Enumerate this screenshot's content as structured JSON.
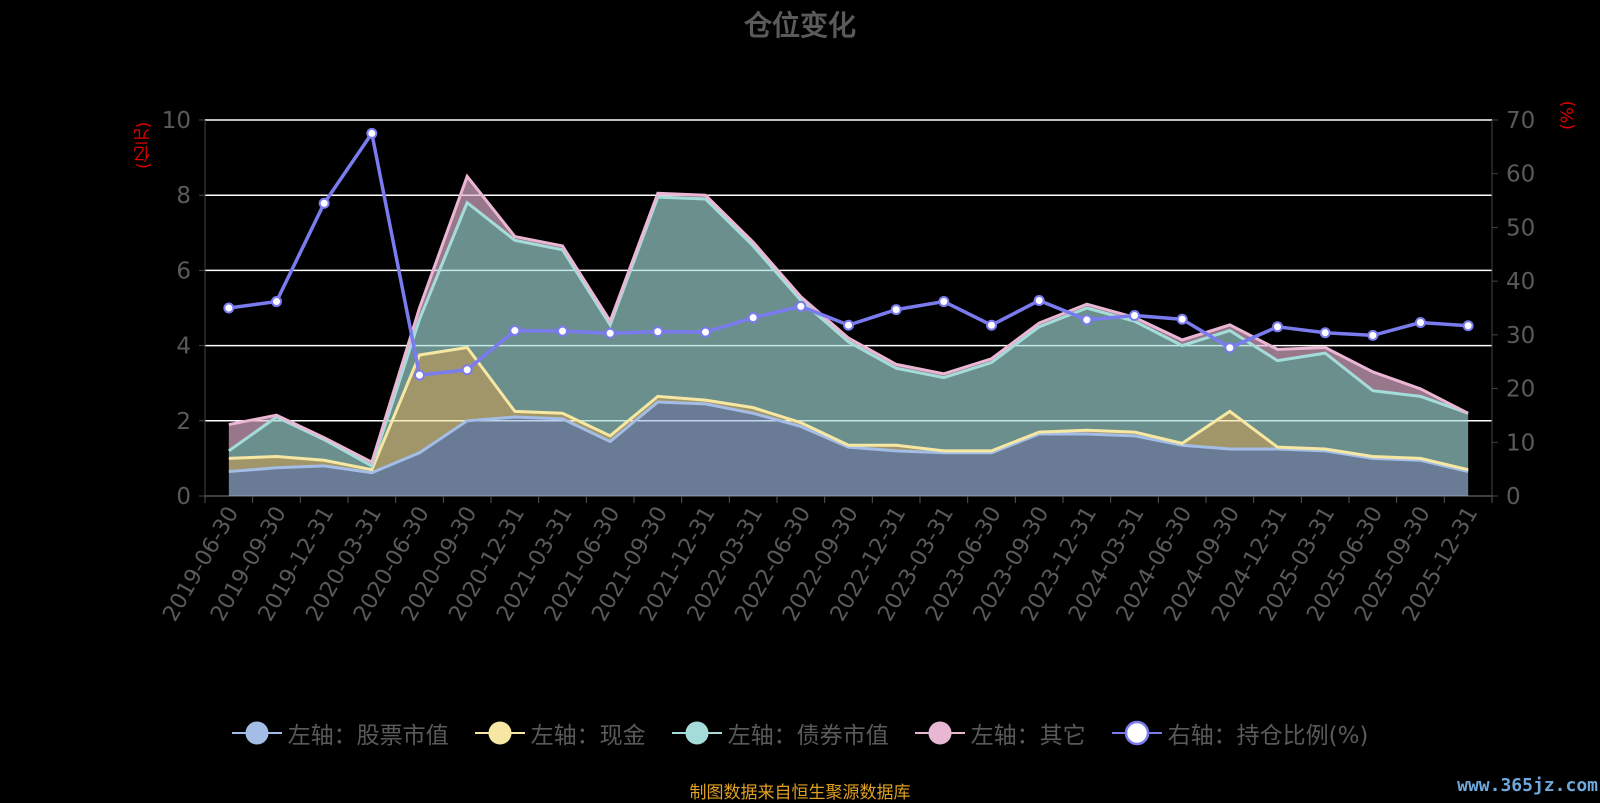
{
  "chart_data": {
    "type": "area",
    "title": "仓位变化",
    "left_unit": "(亿元)",
    "right_unit": "(%)",
    "left_axis": {
      "min": 0,
      "max": 10,
      "ticks": [
        0,
        2,
        4,
        6,
        8,
        10
      ]
    },
    "right_axis": {
      "min": 0,
      "max": 70,
      "ticks": [
        0,
        10,
        20,
        30,
        40,
        50,
        60,
        70
      ]
    },
    "categories": [
      "2019-06-30",
      "2019-09-30",
      "2019-12-31",
      "2020-03-31",
      "2020-06-30",
      "2020-09-30",
      "2020-12-31",
      "2021-03-31",
      "2021-06-30",
      "2021-09-30",
      "2021-12-31",
      "2022-03-31",
      "2022-06-30",
      "2022-09-30",
      "2022-12-31",
      "2023-03-31",
      "2023-06-30",
      "2023-09-30",
      "2023-12-31",
      "2024-03-31",
      "2024-06-30",
      "2024-09-30",
      "2024-12-31",
      "2025-03-31",
      "2025-06-30",
      "2025-09-30",
      "2025-12-31"
    ],
    "stacked_series": [
      {
        "name": "左轴：股票市值",
        "axis": "left",
        "color": "#a3bde6",
        "values": [
          0.65,
          0.75,
          0.8,
          0.62,
          1.15,
          2.0,
          2.1,
          2.05,
          1.45,
          2.5,
          2.45,
          2.2,
          1.85,
          1.3,
          1.2,
          1.15,
          1.15,
          1.65,
          1.65,
          1.6,
          1.35,
          1.25,
          1.25,
          1.2,
          1.0,
          0.95,
          0.65
        ]
      },
      {
        "name": "左轴：现金",
        "axis": "left",
        "color": "#f6e7a3",
        "values": [
          0.35,
          0.3,
          0.15,
          0.08,
          2.6,
          1.95,
          0.15,
          0.15,
          0.15,
          0.15,
          0.1,
          0.15,
          0.1,
          0.05,
          0.15,
          0.05,
          0.05,
          0.05,
          0.1,
          0.1,
          0.05,
          1.0,
          0.05,
          0.05,
          0.05,
          0.05,
          0.05
        ]
      },
      {
        "name": "左轴：债券市值",
        "axis": "left",
        "color": "#a4dcd9",
        "values": [
          0.2,
          1.05,
          0.55,
          0.1,
          0.95,
          3.85,
          4.55,
          4.35,
          2.95,
          5.3,
          5.35,
          4.3,
          3.25,
          2.75,
          2.05,
          1.95,
          2.35,
          2.8,
          3.25,
          2.95,
          2.6,
          2.15,
          2.3,
          2.55,
          1.75,
          1.65,
          1.5
        ]
      },
      {
        "name": "左轴：其它",
        "axis": "left",
        "color": "#e9b7d4",
        "values": [
          0.7,
          0.05,
          0.05,
          0.1,
          0.3,
          0.7,
          0.1,
          0.1,
          0.1,
          0.1,
          0.1,
          0.1,
          0.1,
          0.1,
          0.1,
          0.1,
          0.1,
          0.1,
          0.1,
          0.1,
          0.15,
          0.15,
          0.3,
          0.15,
          0.5,
          0.2,
          0.0
        ]
      }
    ],
    "line_series": {
      "name": "右轴：持仓比例(%)",
      "axis": "right",
      "color": "#7b7bf0",
      "values": [
        35.0,
        36.2,
        54.5,
        67.5,
        22.5,
        23.5,
        30.8,
        30.7,
        30.3,
        30.6,
        30.5,
        33.2,
        35.3,
        31.8,
        34.7,
        36.2,
        31.8,
        36.4,
        32.8,
        33.6,
        32.9,
        27.6,
        31.5,
        30.4,
        29.9,
        32.3,
        31.7
      ]
    },
    "legend_position": "bottom",
    "grid": true
  },
  "footer": {
    "source": "制图数据来自恒生聚源数据库",
    "watermark": "www.365jz.com"
  },
  "colors": {
    "background": "#000000",
    "gridline": "#ffffff",
    "axis_text": "#5a5a5a",
    "unit_text": "#e00000",
    "source_text": "#e0a020"
  }
}
